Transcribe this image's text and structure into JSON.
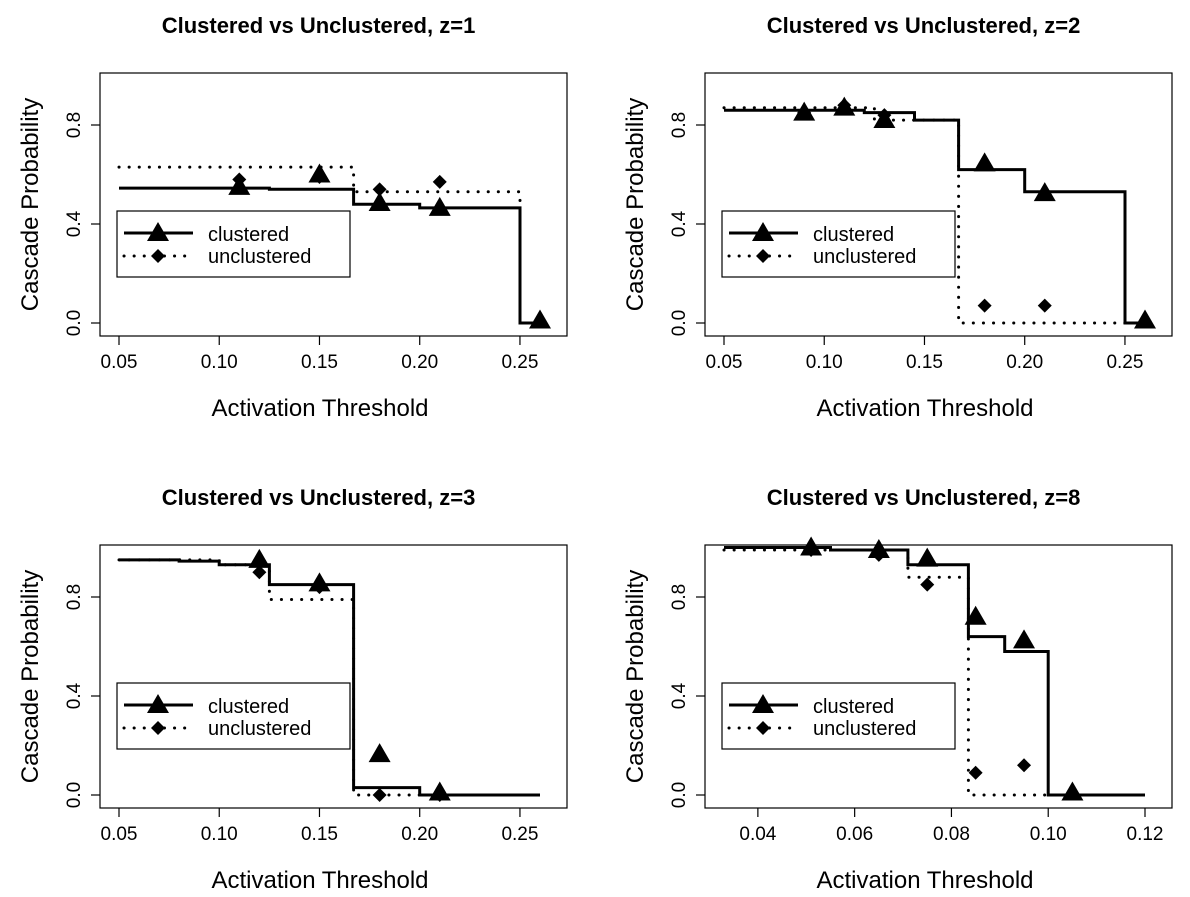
{
  "chart_data": [
    {
      "type": "line",
      "title": "Clustered vs Unclustered, z=1",
      "xlabel": "Activation Threshold",
      "ylabel": "Cascade Probability",
      "xlim": [
        0.05,
        0.26
      ],
      "ylim": [
        0.0,
        1.0
      ],
      "xticks": [
        "0.05",
        "0.10",
        "0.15",
        "0.20",
        "0.25"
      ],
      "yticks": [
        "0.0",
        "0.4",
        "0.8"
      ],
      "legend": {
        "position": "left-middle",
        "entries": [
          "clustered",
          "unclustered"
        ]
      },
      "series": [
        {
          "name": "clustered",
          "style": "solid line",
          "x": [
            0.05,
            0.125,
            0.125,
            0.167,
            0.167,
            0.2,
            0.2,
            0.25,
            0.25,
            0.26
          ],
          "y": [
            0.545,
            0.545,
            0.54,
            0.54,
            0.48,
            0.48,
            0.465,
            0.465,
            0.0,
            0.0
          ]
        },
        {
          "name": "unclustered",
          "style": "dotted line",
          "x": [
            0.05,
            0.167,
            0.167,
            0.25,
            0.25,
            0.26
          ],
          "y": [
            0.63,
            0.63,
            0.53,
            0.53,
            0.0,
            0.0
          ]
        },
        {
          "name": "clustered",
          "style": "triangle points",
          "x": [
            0.11,
            0.15,
            0.18,
            0.21,
            0.26
          ],
          "y": [
            0.55,
            0.6,
            0.485,
            0.465,
            0.01
          ]
        },
        {
          "name": "unclustered",
          "style": "diamond points",
          "x": [
            0.11,
            0.15,
            0.18,
            0.21
          ],
          "y": [
            0.58,
            0.59,
            0.54,
            0.57
          ]
        }
      ]
    },
    {
      "type": "line",
      "title": "Clustered vs Unclustered, z=2",
      "xlabel": "Activation Threshold",
      "ylabel": "Cascade Probability",
      "xlim": [
        0.05,
        0.26
      ],
      "ylim": [
        0.0,
        1.0
      ],
      "xticks": [
        "0.05",
        "0.10",
        "0.15",
        "0.20",
        "0.25"
      ],
      "yticks": [
        "0.0",
        "0.4",
        "0.8"
      ],
      "legend": {
        "position": "left-middle",
        "entries": [
          "clustered",
          "unclustered"
        ]
      },
      "series": [
        {
          "name": "clustered",
          "style": "solid line",
          "x": [
            0.05,
            0.12,
            0.12,
            0.145,
            0.145,
            0.167,
            0.167,
            0.2,
            0.2,
            0.25,
            0.25,
            0.26
          ],
          "y": [
            0.86,
            0.86,
            0.85,
            0.85,
            0.82,
            0.82,
            0.62,
            0.62,
            0.53,
            0.53,
            0.0,
            0.0
          ]
        },
        {
          "name": "unclustered",
          "style": "dotted line",
          "x": [
            0.05,
            0.125,
            0.125,
            0.167,
            0.167,
            0.26
          ],
          "y": [
            0.87,
            0.87,
            0.82,
            0.82,
            0.0,
            0.0
          ]
        },
        {
          "name": "clustered",
          "style": "triangle points",
          "x": [
            0.09,
            0.11,
            0.13,
            0.18,
            0.21,
            0.26
          ],
          "y": [
            0.85,
            0.87,
            0.82,
            0.645,
            0.525,
            0.01
          ]
        },
        {
          "name": "unclustered",
          "style": "diamond points",
          "x": [
            0.09,
            0.11,
            0.13,
            0.18,
            0.21
          ],
          "y": [
            0.85,
            0.88,
            0.84,
            0.07,
            0.07
          ]
        }
      ]
    },
    {
      "type": "line",
      "title": "Clustered vs Unclustered, z=3",
      "xlabel": "Activation Threshold",
      "ylabel": "Cascade Probability",
      "xlim": [
        0.05,
        0.26
      ],
      "ylim": [
        0.0,
        1.0
      ],
      "xticks": [
        "0.05",
        "0.10",
        "0.15",
        "0.20",
        "0.25"
      ],
      "yticks": [
        "0.0",
        "0.4",
        "0.8"
      ],
      "legend": {
        "position": "left-middle",
        "entries": [
          "clustered",
          "unclustered"
        ]
      },
      "series": [
        {
          "name": "clustered",
          "style": "solid line",
          "x": [
            0.05,
            0.08,
            0.08,
            0.1,
            0.1,
            0.125,
            0.125,
            0.167,
            0.167,
            0.2,
            0.2,
            0.26
          ],
          "y": [
            0.95,
            0.95,
            0.945,
            0.945,
            0.93,
            0.93,
            0.85,
            0.85,
            0.03,
            0.03,
            0.0,
            0.0
          ]
        },
        {
          "name": "unclustered",
          "style": "dotted line",
          "x": [
            0.05,
            0.1,
            0.1,
            0.125,
            0.125,
            0.167,
            0.167,
            0.26
          ],
          "y": [
            0.95,
            0.95,
            0.93,
            0.93,
            0.79,
            0.79,
            0.0,
            0.0
          ]
        },
        {
          "name": "clustered",
          "style": "triangle points",
          "x": [
            0.12,
            0.15,
            0.18,
            0.21
          ],
          "y": [
            0.95,
            0.855,
            0.165,
            0.01
          ]
        },
        {
          "name": "unclustered",
          "style": "diamond points",
          "x": [
            0.12,
            0.15,
            0.18,
            0.21
          ],
          "y": [
            0.9,
            0.84,
            0.0,
            0.0
          ]
        }
      ]
    },
    {
      "type": "line",
      "title": "Clustered vs Unclustered, z=8",
      "xlabel": "Activation Threshold",
      "ylabel": "Cascade Probability",
      "xlim": [
        0.033,
        0.12
      ],
      "ylim": [
        0.0,
        1.0
      ],
      "xticks": [
        "0.04",
        "0.06",
        "0.08",
        "0.10",
        "0.12"
      ],
      "yticks": [
        "0.0",
        "0.4",
        "0.8"
      ],
      "legend": {
        "position": "left-middle",
        "entries": [
          "clustered",
          "unclustered"
        ]
      },
      "series": [
        {
          "name": "clustered",
          "style": "solid line",
          "x": [
            0.033,
            0.055,
            0.055,
            0.071,
            0.071,
            0.0835,
            0.0835,
            0.091,
            0.091,
            0.1,
            0.1,
            0.12
          ],
          "y": [
            1.0,
            1.0,
            0.99,
            0.99,
            0.93,
            0.93,
            0.64,
            0.64,
            0.58,
            0.58,
            0.0,
            0.0
          ]
        },
        {
          "name": "unclustered",
          "style": "dotted line",
          "x": [
            0.033,
            0.071,
            0.071,
            0.0835,
            0.0835,
            0.12
          ],
          "y": [
            0.99,
            0.99,
            0.88,
            0.88,
            0.0,
            0.0
          ]
        },
        {
          "name": "clustered",
          "style": "triangle points",
          "x": [
            0.051,
            0.065,
            0.075,
            0.085,
            0.095,
            0.105
          ],
          "y": [
            1.0,
            0.99,
            0.955,
            0.72,
            0.625,
            0.01
          ]
        },
        {
          "name": "unclustered",
          "style": "diamond points",
          "x": [
            0.051,
            0.065,
            0.075,
            0.085,
            0.095
          ],
          "y": [
            0.99,
            0.97,
            0.85,
            0.09,
            0.12
          ]
        }
      ]
    }
  ]
}
